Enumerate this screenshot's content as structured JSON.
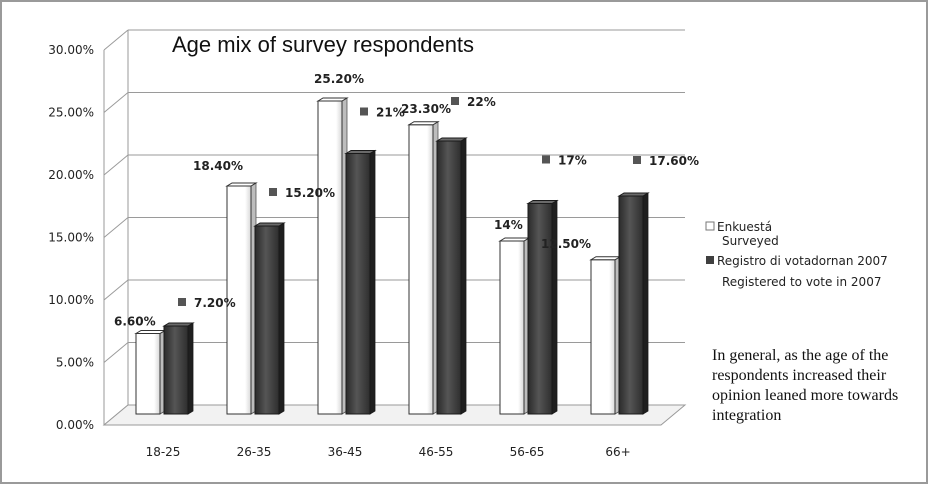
{
  "chart_data": {
    "type": "bar",
    "title": "Age mix of survey respondents",
    "categories": [
      "18-25",
      "26-35",
      "36-45",
      "46-55",
      "56-65",
      "66+"
    ],
    "ylim": [
      0,
      30
    ],
    "yticks": [
      "0.00%",
      "5.00%",
      "10.00%",
      "15.00%",
      "20.00%",
      "25.00%",
      "30.00%"
    ],
    "grid": true,
    "legend_position": "right",
    "series": [
      {
        "name": "Enkuestá",
        "name_en": "Surveyed",
        "color": "#ffffff",
        "values": [
          6.6,
          18.4,
          25.2,
          23.3,
          14,
          12.5
        ],
        "labels": [
          "6.60%",
          "18.40%",
          "25.20%",
          "23.30%",
          "14%",
          "12.50%"
        ]
      },
      {
        "name": "Registro di votadornan 2007",
        "name_en": "Registered to vote in 2007",
        "color": "#3f3f3f",
        "values": [
          7.2,
          15.2,
          21,
          22,
          17,
          17.6
        ],
        "labels": [
          "7.20%",
          "15.20%",
          "21%",
          "22%",
          "17%",
          "17.60%"
        ]
      }
    ]
  },
  "annotation": "In general, as the age of the respondents increased their opinion leaned more towards integration"
}
